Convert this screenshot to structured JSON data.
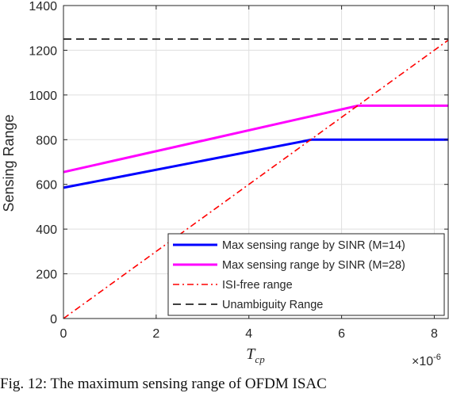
{
  "chart_data": {
    "type": "line",
    "xlabel": "T_cp",
    "ylabel": "Sensing Range",
    "x_exponent": "×10^-6",
    "xlim": [
      0,
      8.3
    ],
    "ylim": [
      0,
      1400
    ],
    "xticks": [
      0,
      2,
      4,
      6,
      8
    ],
    "yticks": [
      0,
      200,
      400,
      600,
      800,
      1000,
      1200,
      1400
    ],
    "grid": true,
    "legend_position": "bottom-right",
    "series": [
      {
        "name": "Max sensing range by SINR (M=14)",
        "color": "#0000ff",
        "dash": "solid",
        "x": [
          0,
          5.35,
          8.3
        ],
        "y": [
          585,
          800,
          800
        ]
      },
      {
        "name": "Max sensing range by SINR (M=28)",
        "color": "#ff00ff",
        "dash": "solid",
        "x": [
          0,
          6.35,
          8.3
        ],
        "y": [
          655,
          952,
          952
        ]
      },
      {
        "name": "ISI-free range",
        "color": "#ff0000",
        "dash": "dashdot",
        "x": [
          0,
          8.3
        ],
        "y": [
          0,
          1245
        ]
      },
      {
        "name": "Unambiguity Range",
        "color": "#000000",
        "dash": "dashed",
        "x": [
          0,
          8.3
        ],
        "y": [
          1250,
          1250
        ]
      }
    ]
  },
  "caption": "Fig. 12: The maximum sensing range of OFDM ISAC"
}
